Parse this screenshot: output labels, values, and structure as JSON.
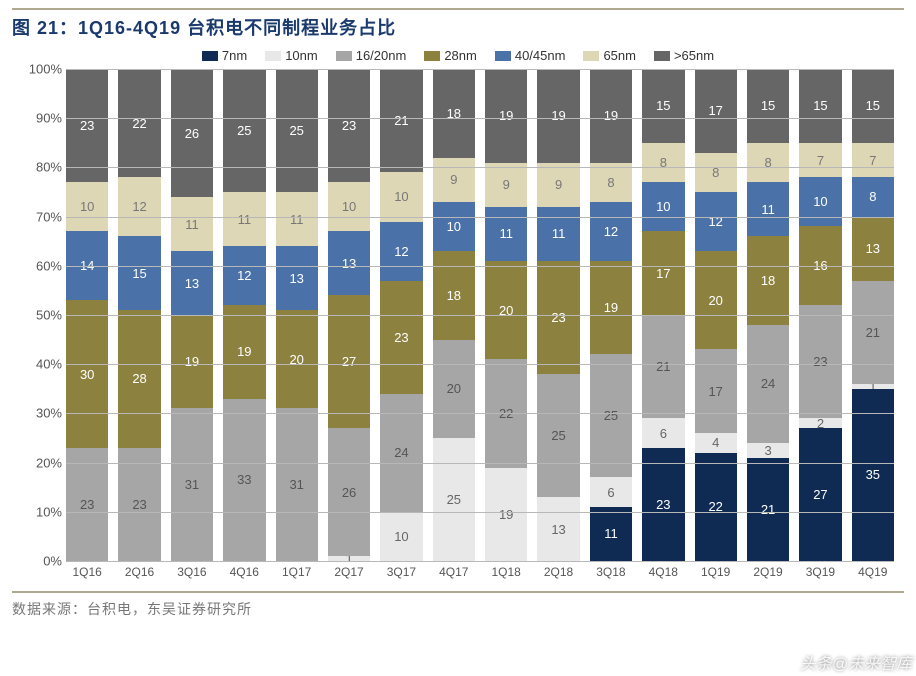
{
  "title": "图 21：1Q16-4Q19 台积电不同制程业务占比",
  "source": "数据来源：台积电，东吴证券研究所",
  "watermark": "头条@未来智库",
  "chart": {
    "type": "stacked-bar",
    "bg": "#ffffff",
    "grid_color": "#b8b8b8",
    "ylim": [
      0,
      100
    ],
    "ytick_step": 10,
    "yticklabel_suffix": "%",
    "label_fontsize": 13,
    "series": [
      {
        "key": "7nm",
        "label": "7nm",
        "color": "#0f2b53",
        "text": "#ffffff"
      },
      {
        "key": "10nm",
        "label": "10nm",
        "color": "#e8e8e8",
        "text": "#666666"
      },
      {
        "key": "16_20",
        "label": "16/20nm",
        "color": "#a6a6a6",
        "text": "#555555"
      },
      {
        "key": "28nm",
        "label": "28nm",
        "color": "#8c813f",
        "text": "#ffffff"
      },
      {
        "key": "40_45",
        "label": "40/45nm",
        "color": "#4a71a8",
        "text": "#ffffff"
      },
      {
        "key": "65nm",
        "label": "65nm",
        "color": "#ded7b6",
        "text": "#777777"
      },
      {
        "key": "gt65",
        "label": ">65nm",
        "color": "#666666",
        "text": "#ffffff"
      }
    ],
    "categories": [
      "1Q16",
      "2Q16",
      "3Q16",
      "4Q16",
      "1Q17",
      "2Q17",
      "3Q17",
      "4Q17",
      "1Q18",
      "2Q18",
      "3Q18",
      "4Q18",
      "1Q19",
      "2Q19",
      "3Q19",
      "4Q19"
    ],
    "data": {
      "7nm": [
        0,
        0,
        0,
        0,
        0,
        0,
        0,
        0,
        0,
        0,
        11,
        23,
        22,
        21,
        27,
        35
      ],
      "10nm": [
        0,
        0,
        0,
        0,
        0,
        1,
        10,
        25,
        19,
        13,
        6,
        6,
        4,
        3,
        2,
        1
      ],
      "16_20": [
        23,
        23,
        31,
        33,
        31,
        26,
        24,
        20,
        22,
        25,
        25,
        21,
        17,
        24,
        23,
        21
      ],
      "28nm": [
        30,
        28,
        19,
        19,
        20,
        27,
        23,
        18,
        20,
        23,
        19,
        17,
        20,
        18,
        16,
        13
      ],
      "40_45": [
        14,
        15,
        13,
        12,
        13,
        13,
        12,
        10,
        11,
        11,
        12,
        10,
        12,
        11,
        10,
        8
      ],
      "65nm": [
        10,
        12,
        11,
        11,
        11,
        10,
        10,
        9,
        9,
        9,
        8,
        8,
        8,
        8,
        7,
        7
      ],
      "gt65": [
        23,
        22,
        26,
        25,
        25,
        23,
        21,
        18,
        19,
        19,
        19,
        15,
        17,
        15,
        15,
        15
      ]
    },
    "hide_zero_labels": true
  }
}
